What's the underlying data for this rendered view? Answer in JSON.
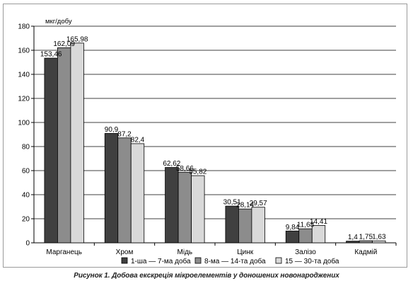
{
  "caption": "Рисунок 1. Добова екскреція мікроелементів у доношених новонароджених",
  "chart_data": {
    "type": "bar",
    "title": "",
    "xlabel": "",
    "ylabel": "мкг/добу",
    "ylim": [
      0,
      180
    ],
    "yticks": [
      0,
      20,
      40,
      60,
      80,
      100,
      120,
      140,
      160,
      180
    ],
    "grid": true,
    "legend_position": "bottom",
    "categories": [
      "Марганець",
      "Хром",
      "Мідь",
      "Цинк",
      "Залізо",
      "Кадмій"
    ],
    "series": [
      {
        "name": "1-ша — 7-ма доба",
        "color": "#404040",
        "values": [
          153.46,
          90.9,
          62.62,
          30.51,
          9.84,
          1.4
        ],
        "labels": [
          "153,46",
          "90,9",
          "62,62",
          "30,51",
          "9,84",
          "1,4"
        ]
      },
      {
        "name": "8-ма — 14-та доба",
        "color": "#8c8c8c",
        "values": [
          162.09,
          87.2,
          58.66,
          28.14,
          11.68,
          1.75
        ],
        "labels": [
          "162,09",
          "87,2",
          "58,66",
          "28,14",
          "11,68",
          "1,75"
        ]
      },
      {
        "name": "15 — 30-та доба",
        "color": "#d9d9d9",
        "values": [
          165.98,
          82.4,
          55.82,
          29.57,
          14.41,
          1.63
        ],
        "labels": [
          "165,98",
          "82,4",
          "55,82",
          "29,57",
          "14,41",
          "1,63"
        ]
      }
    ]
  }
}
